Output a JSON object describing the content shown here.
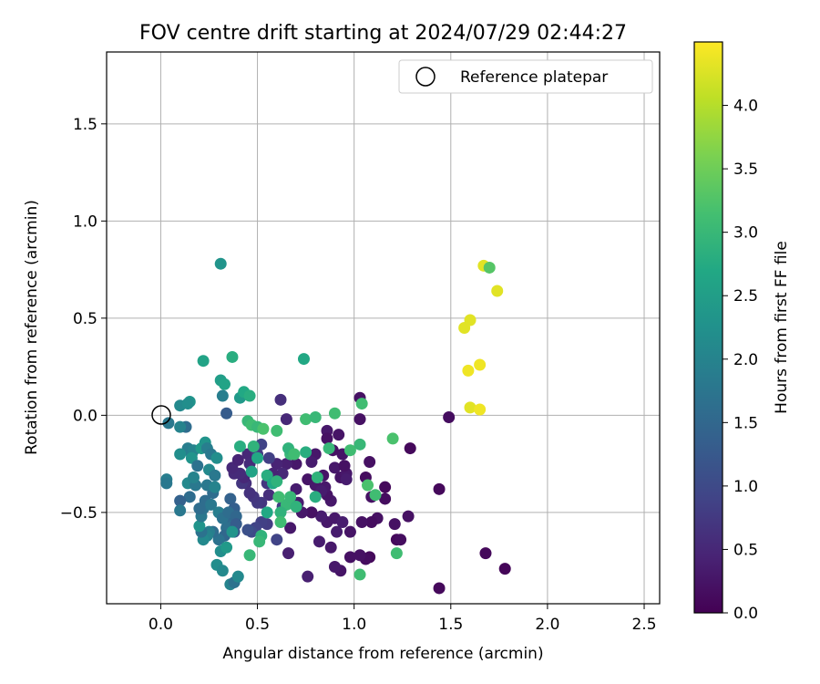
{
  "chart_data": {
    "type": "scatter",
    "title": "FOV centre drift starting at 2024/07/29 02:44:27",
    "xlabel": "Angular distance from reference (arcmin)",
    "ylabel": "Rotation from reference (arcmin)",
    "xlim": [
      -0.28,
      2.58
    ],
    "ylim": [
      -0.97,
      1.87
    ],
    "xticks": [
      0.0,
      0.5,
      1.0,
      1.5,
      2.0,
      2.5
    ],
    "xtick_labels": [
      "0.0",
      "0.5",
      "1.0",
      "1.5",
      "2.0",
      "2.5"
    ],
    "yticks": [
      -0.5,
      0.0,
      0.5,
      1.0,
      1.5
    ],
    "ytick_labels": [
      "−0.5",
      "0.0",
      "0.5",
      "1.0",
      "1.5"
    ],
    "grid": true,
    "legend": {
      "position": "top-right",
      "entries": [
        "Reference platepar"
      ]
    },
    "reference_point": {
      "x": 0.0,
      "y": 0.0
    },
    "colorbar": {
      "label": "Hours from first FF file",
      "range": [
        0.0,
        4.5
      ],
      "ticks": [
        0.0,
        0.5,
        1.0,
        1.5,
        2.0,
        2.5,
        3.0,
        3.5,
        4.0
      ],
      "tick_labels": [
        "0.0",
        "0.5",
        "1.0",
        "1.5",
        "2.0",
        "2.5",
        "3.0",
        "3.5",
        "4.0"
      ],
      "colormap": "viridis"
    },
    "points": [
      [
        1.44,
        -0.89,
        0.1
      ],
      [
        1.78,
        -0.79,
        0.05
      ],
      [
        1.68,
        -0.71,
        0.1
      ],
      [
        1.49,
        -0.01,
        0.15
      ],
      [
        1.44,
        -0.38,
        0.1
      ],
      [
        1.29,
        -0.17,
        0.1
      ],
      [
        1.22,
        -0.64,
        0.1
      ],
      [
        1.24,
        -0.64,
        0.15
      ],
      [
        1.28,
        -0.52,
        0.2
      ],
      [
        1.21,
        -0.56,
        0.2
      ],
      [
        1.16,
        -0.37,
        0.1
      ],
      [
        1.16,
        -0.43,
        0.15
      ],
      [
        1.12,
        -0.53,
        0.2
      ],
      [
        1.08,
        -0.73,
        0.1
      ],
      [
        1.06,
        -0.74,
        0.15
      ],
      [
        1.03,
        -0.72,
        0.2
      ],
      [
        1.09,
        -0.55,
        0.15
      ],
      [
        1.04,
        -0.55,
        0.2
      ],
      [
        1.06,
        -0.32,
        0.15
      ],
      [
        1.09,
        -0.42,
        0.2
      ],
      [
        1.08,
        -0.24,
        0.2
      ],
      [
        1.03,
        0.09,
        0.2
      ],
      [
        1.03,
        -0.02,
        0.2
      ],
      [
        0.98,
        -0.6,
        0.25
      ],
      [
        0.98,
        -0.73,
        0.2
      ],
      [
        0.93,
        -0.8,
        0.25
      ],
      [
        0.9,
        -0.78,
        0.3
      ],
      [
        0.91,
        -0.6,
        0.35
      ],
      [
        0.88,
        -0.68,
        0.3
      ],
      [
        0.82,
        -0.65,
        0.35
      ],
      [
        0.86,
        -0.55,
        0.3
      ],
      [
        0.83,
        -0.52,
        0.35
      ],
      [
        0.9,
        -0.53,
        0.3
      ],
      [
        0.94,
        -0.55,
        0.35
      ],
      [
        0.76,
        -0.83,
        0.4
      ],
      [
        0.78,
        -0.5,
        0.2
      ],
      [
        0.73,
        -0.5,
        0.3
      ],
      [
        0.71,
        -0.45,
        0.35
      ],
      [
        0.67,
        -0.58,
        0.3
      ],
      [
        0.66,
        -0.71,
        0.4
      ],
      [
        0.88,
        -0.44,
        0.3
      ],
      [
        0.86,
        -0.41,
        0.25
      ],
      [
        0.85,
        -0.37,
        0.3
      ],
      [
        0.9,
        -0.27,
        0.3
      ],
      [
        0.93,
        -0.32,
        0.25
      ],
      [
        0.96,
        -0.3,
        0.3
      ],
      [
        0.96,
        -0.33,
        0.35
      ],
      [
        0.95,
        -0.26,
        0.2
      ],
      [
        0.94,
        -0.2,
        0.25
      ],
      [
        0.89,
        -0.18,
        0.2
      ],
      [
        0.92,
        -0.1,
        0.25
      ],
      [
        0.86,
        -0.08,
        0.3
      ],
      [
        0.86,
        -0.12,
        0.2
      ],
      [
        0.8,
        -0.2,
        0.3
      ],
      [
        0.78,
        -0.24,
        0.35
      ],
      [
        0.76,
        -0.33,
        0.25
      ],
      [
        0.8,
        -0.36,
        0.3
      ],
      [
        0.83,
        -0.39,
        0.35
      ],
      [
        0.84,
        -0.31,
        0.25
      ],
      [
        0.7,
        -0.38,
        0.35
      ],
      [
        0.7,
        -0.25,
        0.3
      ],
      [
        0.65,
        -0.25,
        0.4
      ],
      [
        0.6,
        -0.25,
        0.45
      ],
      [
        0.63,
        -0.3,
        0.5
      ],
      [
        0.58,
        -0.3,
        0.45
      ],
      [
        0.62,
        0.08,
        0.6
      ],
      [
        0.65,
        -0.02,
        0.5
      ],
      [
        0.56,
        -0.41,
        0.6
      ],
      [
        0.52,
        -0.45,
        0.7
      ],
      [
        0.5,
        -0.45,
        0.75
      ],
      [
        0.55,
        -0.56,
        0.8
      ],
      [
        0.52,
        -0.55,
        0.85
      ],
      [
        0.49,
        -0.58,
        0.9
      ],
      [
        0.47,
        -0.6,
        1.0
      ],
      [
        0.45,
        -0.59,
        1.1
      ],
      [
        0.6,
        -0.64,
        0.9
      ],
      [
        0.63,
        -0.47,
        0.8
      ],
      [
        0.48,
        -0.42,
        0.7
      ],
      [
        0.46,
        -0.4,
        0.65
      ],
      [
        0.44,
        -0.35,
        0.6
      ],
      [
        0.42,
        -0.35,
        0.7
      ],
      [
        0.43,
        -0.32,
        0.5
      ],
      [
        0.41,
        -0.3,
        0.55
      ],
      [
        0.38,
        -0.3,
        0.55
      ],
      [
        0.37,
        -0.27,
        0.5
      ],
      [
        0.4,
        -0.23,
        0.45
      ],
      [
        0.45,
        -0.2,
        0.5
      ],
      [
        0.46,
        -0.25,
        0.55
      ],
      [
        0.5,
        -0.2,
        0.8
      ],
      [
        0.52,
        -0.15,
        0.9
      ],
      [
        0.56,
        -0.22,
        0.85
      ],
      [
        0.55,
        -0.35,
        0.7
      ],
      [
        0.34,
        0.01,
        1.3
      ],
      [
        0.32,
        0.1,
        1.9
      ],
      [
        0.36,
        -0.43,
        1.4
      ],
      [
        0.38,
        -0.48,
        1.35
      ],
      [
        0.36,
        -0.54,
        1.5
      ],
      [
        0.37,
        -0.57,
        1.6
      ],
      [
        0.34,
        -0.58,
        1.65
      ],
      [
        0.38,
        -0.6,
        1.2
      ],
      [
        0.33,
        -0.62,
        1.5
      ],
      [
        0.3,
        -0.64,
        1.7
      ],
      [
        0.27,
        -0.6,
        1.6
      ],
      [
        0.25,
        -0.6,
        1.9
      ],
      [
        0.24,
        -0.62,
        2.0
      ],
      [
        0.22,
        -0.64,
        2.1
      ],
      [
        0.21,
        -0.6,
        1.7
      ],
      [
        0.2,
        -0.57,
        2.3
      ],
      [
        0.21,
        -0.52,
        1.8
      ],
      [
        0.22,
        -0.48,
        1.7
      ],
      [
        0.2,
        -0.48,
        1.6
      ],
      [
        0.23,
        -0.44,
        1.6
      ],
      [
        0.26,
        -0.46,
        1.8
      ],
      [
        0.27,
        -0.4,
        1.6
      ],
      [
        0.24,
        -0.36,
        1.8
      ],
      [
        0.28,
        -0.37,
        2.0
      ],
      [
        0.3,
        -0.5,
        1.9
      ],
      [
        0.32,
        -0.53,
        1.7
      ],
      [
        0.35,
        -0.5,
        1.6
      ],
      [
        0.39,
        -0.52,
        1.5
      ],
      [
        0.39,
        -0.56,
        1.3
      ],
      [
        0.31,
        -0.7,
        2.2
      ],
      [
        0.34,
        -0.68,
        2.4
      ],
      [
        0.29,
        -0.77,
        2.2
      ],
      [
        0.32,
        -0.8,
        2.1
      ],
      [
        0.36,
        -0.87,
        2.0
      ],
      [
        0.38,
        -0.86,
        1.7
      ],
      [
        0.4,
        -0.83,
        2.1
      ],
      [
        0.37,
        -0.6,
        2.3
      ],
      [
        0.15,
        -0.42,
        1.6
      ],
      [
        0.1,
        -0.44,
        1.4
      ],
      [
        0.1,
        -0.49,
        1.8
      ],
      [
        0.14,
        -0.35,
        2.1
      ],
      [
        0.18,
        -0.36,
        1.8
      ],
      [
        0.17,
        -0.32,
        2.0
      ],
      [
        0.16,
        -0.2,
        1.8
      ],
      [
        0.14,
        -0.17,
        1.9
      ],
      [
        0.17,
        -0.18,
        2.0
      ],
      [
        0.1,
        -0.2,
        2.2
      ],
      [
        0.16,
        -0.22,
        2.3
      ],
      [
        0.21,
        -0.17,
        2.4
      ],
      [
        0.23,
        -0.14,
        2.3
      ],
      [
        0.24,
        -0.17,
        1.9
      ],
      [
        0.26,
        -0.2,
        1.8
      ],
      [
        0.29,
        -0.22,
        2.2
      ],
      [
        0.25,
        -0.28,
        2.1
      ],
      [
        0.28,
        -0.31,
        1.8
      ],
      [
        0.19,
        -0.26,
        1.7
      ],
      [
        0.13,
        -0.06,
        1.6
      ],
      [
        0.1,
        -0.06,
        2.0
      ],
      [
        0.04,
        -0.04,
        1.8
      ],
      [
        0.03,
        -0.33,
        1.9
      ],
      [
        0.03,
        -0.35,
        1.8
      ],
      [
        0.1,
        0.05,
        2.1
      ],
      [
        0.15,
        0.07,
        2.3
      ],
      [
        0.14,
        0.06,
        2.2
      ],
      [
        0.31,
        0.18,
        2.5
      ],
      [
        0.33,
        0.16,
        2.6
      ],
      [
        0.41,
        0.09,
        2.4
      ],
      [
        0.43,
        0.12,
        2.7
      ],
      [
        0.46,
        0.1,
        2.8
      ],
      [
        0.37,
        0.3,
        2.8
      ],
      [
        0.22,
        0.28,
        2.6
      ],
      [
        0.31,
        0.78,
        2.3
      ],
      [
        0.74,
        0.29,
        2.7
      ],
      [
        0.45,
        -0.03,
        3.0
      ],
      [
        0.47,
        -0.05,
        3.1
      ],
      [
        0.5,
        -0.06,
        3.0
      ],
      [
        0.53,
        -0.07,
        3.2
      ],
      [
        0.6,
        -0.08,
        3.1
      ],
      [
        0.41,
        -0.16,
        2.8
      ],
      [
        0.48,
        -0.16,
        2.9
      ],
      [
        0.5,
        -0.22,
        2.7
      ],
      [
        0.47,
        -0.29,
        2.6
      ],
      [
        0.55,
        -0.31,
        2.8
      ],
      [
        0.58,
        -0.35,
        2.7
      ],
      [
        0.6,
        -0.34,
        2.9
      ],
      [
        0.67,
        -0.2,
        3.0
      ],
      [
        0.66,
        -0.17,
        2.9
      ],
      [
        0.69,
        -0.2,
        3.1
      ],
      [
        0.75,
        -0.02,
        3.1
      ],
      [
        0.8,
        -0.01,
        3.0
      ],
      [
        0.75,
        -0.19,
        2.8
      ],
      [
        0.81,
        -0.32,
        2.9
      ],
      [
        0.8,
        -0.42,
        2.8
      ],
      [
        0.87,
        -0.17,
        3.0
      ],
      [
        0.9,
        0.01,
        3.1
      ],
      [
        0.98,
        -0.18,
        3.1
      ],
      [
        1.03,
        -0.15,
        3.0
      ],
      [
        1.04,
        0.06,
        3.1
      ],
      [
        1.07,
        -0.36,
        3.2
      ],
      [
        1.11,
        -0.41,
        3.1
      ],
      [
        1.2,
        -0.12,
        3.2
      ],
      [
        1.22,
        -0.71,
        3.1
      ],
      [
        1.03,
        -0.82,
        3.1
      ],
      [
        0.65,
        -0.46,
        3.0
      ],
      [
        0.62,
        -0.5,
        2.9
      ],
      [
        0.62,
        -0.55,
        3.1
      ],
      [
        0.55,
        -0.5,
        2.7
      ],
      [
        0.52,
        -0.62,
        2.9
      ],
      [
        0.51,
        -0.65,
        3.0
      ],
      [
        0.46,
        -0.72,
        3.0
      ],
      [
        0.67,
        -0.42,
        3.0
      ],
      [
        0.7,
        -0.47,
        2.9
      ],
      [
        0.61,
        -0.42,
        3.1
      ],
      [
        1.57,
        0.45,
        4.3
      ],
      [
        1.6,
        0.49,
        4.3
      ],
      [
        1.59,
        0.23,
        4.4
      ],
      [
        1.65,
        0.26,
        4.4
      ],
      [
        1.6,
        0.04,
        4.3
      ],
      [
        1.65,
        0.03,
        4.4
      ],
      [
        1.67,
        0.77,
        4.3
      ],
      [
        1.74,
        0.64,
        4.3
      ],
      [
        1.7,
        0.76,
        3.3
      ]
    ]
  }
}
